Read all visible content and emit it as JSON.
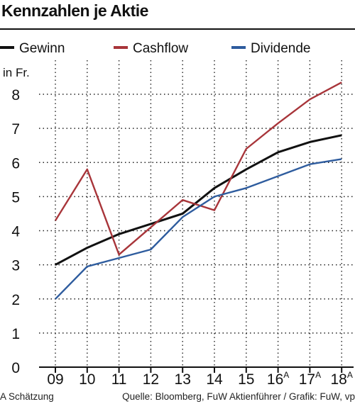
{
  "title": "Kennzahlen je Aktie",
  "footnote": "A Schätzung",
  "source": "Quelle: Bloomberg, FuW Aktienführer / Grafik: FuW, vp",
  "chart_data": {
    "type": "line",
    "unit_label": "in Fr.",
    "categories": [
      "09",
      "10",
      "11",
      "12",
      "13",
      "14",
      "15",
      "16",
      "17",
      "18"
    ],
    "category_superscripts": [
      "",
      "",
      "",
      "",
      "",
      "",
      "",
      "A",
      "A",
      "A"
    ],
    "ylim": [
      0,
      8.5
    ],
    "yticks": [
      0,
      1,
      2,
      3,
      4,
      5,
      6,
      7,
      8
    ],
    "grid": "dotted",
    "legend_position": "top",
    "series": [
      {
        "name": "Gewinn",
        "color": "#111111",
        "values": [
          3.0,
          3.5,
          3.9,
          4.2,
          4.5,
          5.25,
          5.8,
          6.3,
          6.6,
          6.8
        ]
      },
      {
        "name": "Cashflow",
        "color": "#a8353a",
        "values": [
          4.3,
          5.8,
          3.3,
          4.1,
          4.9,
          4.6,
          6.4,
          7.15,
          7.85,
          8.35
        ]
      },
      {
        "name": "Dividende",
        "color": "#2e5c9e",
        "values": [
          2.0,
          2.95,
          3.2,
          3.45,
          4.4,
          5.0,
          5.25,
          5.6,
          5.95,
          6.1
        ]
      }
    ]
  }
}
